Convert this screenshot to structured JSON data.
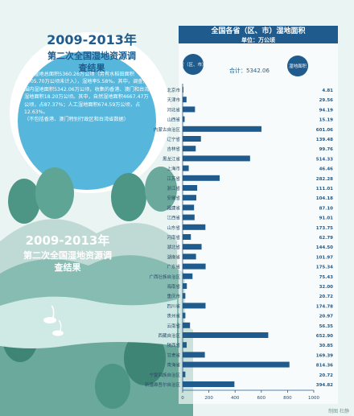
{
  "intro": {
    "title": "2009-2013年",
    "subtitle": "第二次全国湿地资源调查结果",
    "body": [
      "全国湿地总面积5360.26万公顷（另有水稻田面积3005.70万公顷未计入），湿地率5.58%。其中，调查范围内湿地面积5342.06万公顷，收集的香港、澳门和台湾湿地面积18.20万公顷。其中，自然湿地面积4667.47万公顷，占87.37%；人工湿地面积674.59万公顷，占12.63%。",
      "（不包括香港、澳门特别行政区和台湾省数据）"
    ]
  },
  "bottom": {
    "heading": "2009-2013年",
    "subheading": "第二次全国湿地资源调查结果"
  },
  "chart": {
    "title": "全国各省（区、市）湿地面积",
    "unit": "单位：万公顷",
    "total_label": "合计：5342.06",
    "province_header": "省（区、市）",
    "value_header": "湿地面积"
  },
  "credit": "制图 杜静",
  "colors": {
    "bar": "#1f5b8c",
    "background": "#eaf4f2",
    "hill_light": "#bfdad4",
    "hill_mid": "#86bcb1",
    "hill_dark": "#4d9585",
    "title_bar": "#1f5b8c",
    "text_value": "#1f5b8c"
  },
  "chart_data": {
    "type": "bar",
    "orientation": "horizontal",
    "categories": [
      "北京市",
      "天津市",
      "河北省",
      "山西省",
      "内蒙古自治区",
      "辽宁省",
      "吉林省",
      "黑龙江省",
      "上海市",
      "江苏省",
      "浙江省",
      "安徽省",
      "福建省",
      "江西省",
      "山东省",
      "河南省",
      "湖北省",
      "湖南省",
      "广东省",
      "广西壮族自治区",
      "海南省",
      "重庆市",
      "四川省",
      "贵州省",
      "云南省",
      "西藏自治区",
      "陕西省",
      "甘肃省",
      "青海省",
      "宁夏回族自治区",
      "新疆维吾尔自治区"
    ],
    "values": [
      4.81,
      29.56,
      94.19,
      15.19,
      601.06,
      139.48,
      99.76,
      514.33,
      46.46,
      282.28,
      111.01,
      104.18,
      87.1,
      91.01,
      173.75,
      62.79,
      144.5,
      101.97,
      175.34,
      75.43,
      32.0,
      20.72,
      174.78,
      20.97,
      56.35,
      652.9,
      30.85,
      169.39,
      814.36,
      20.72,
      394.82
    ],
    "xlim": [
      0,
      1000
    ],
    "xticks": [
      0,
      200,
      400,
      600,
      800,
      1000
    ],
    "grid": false
  }
}
